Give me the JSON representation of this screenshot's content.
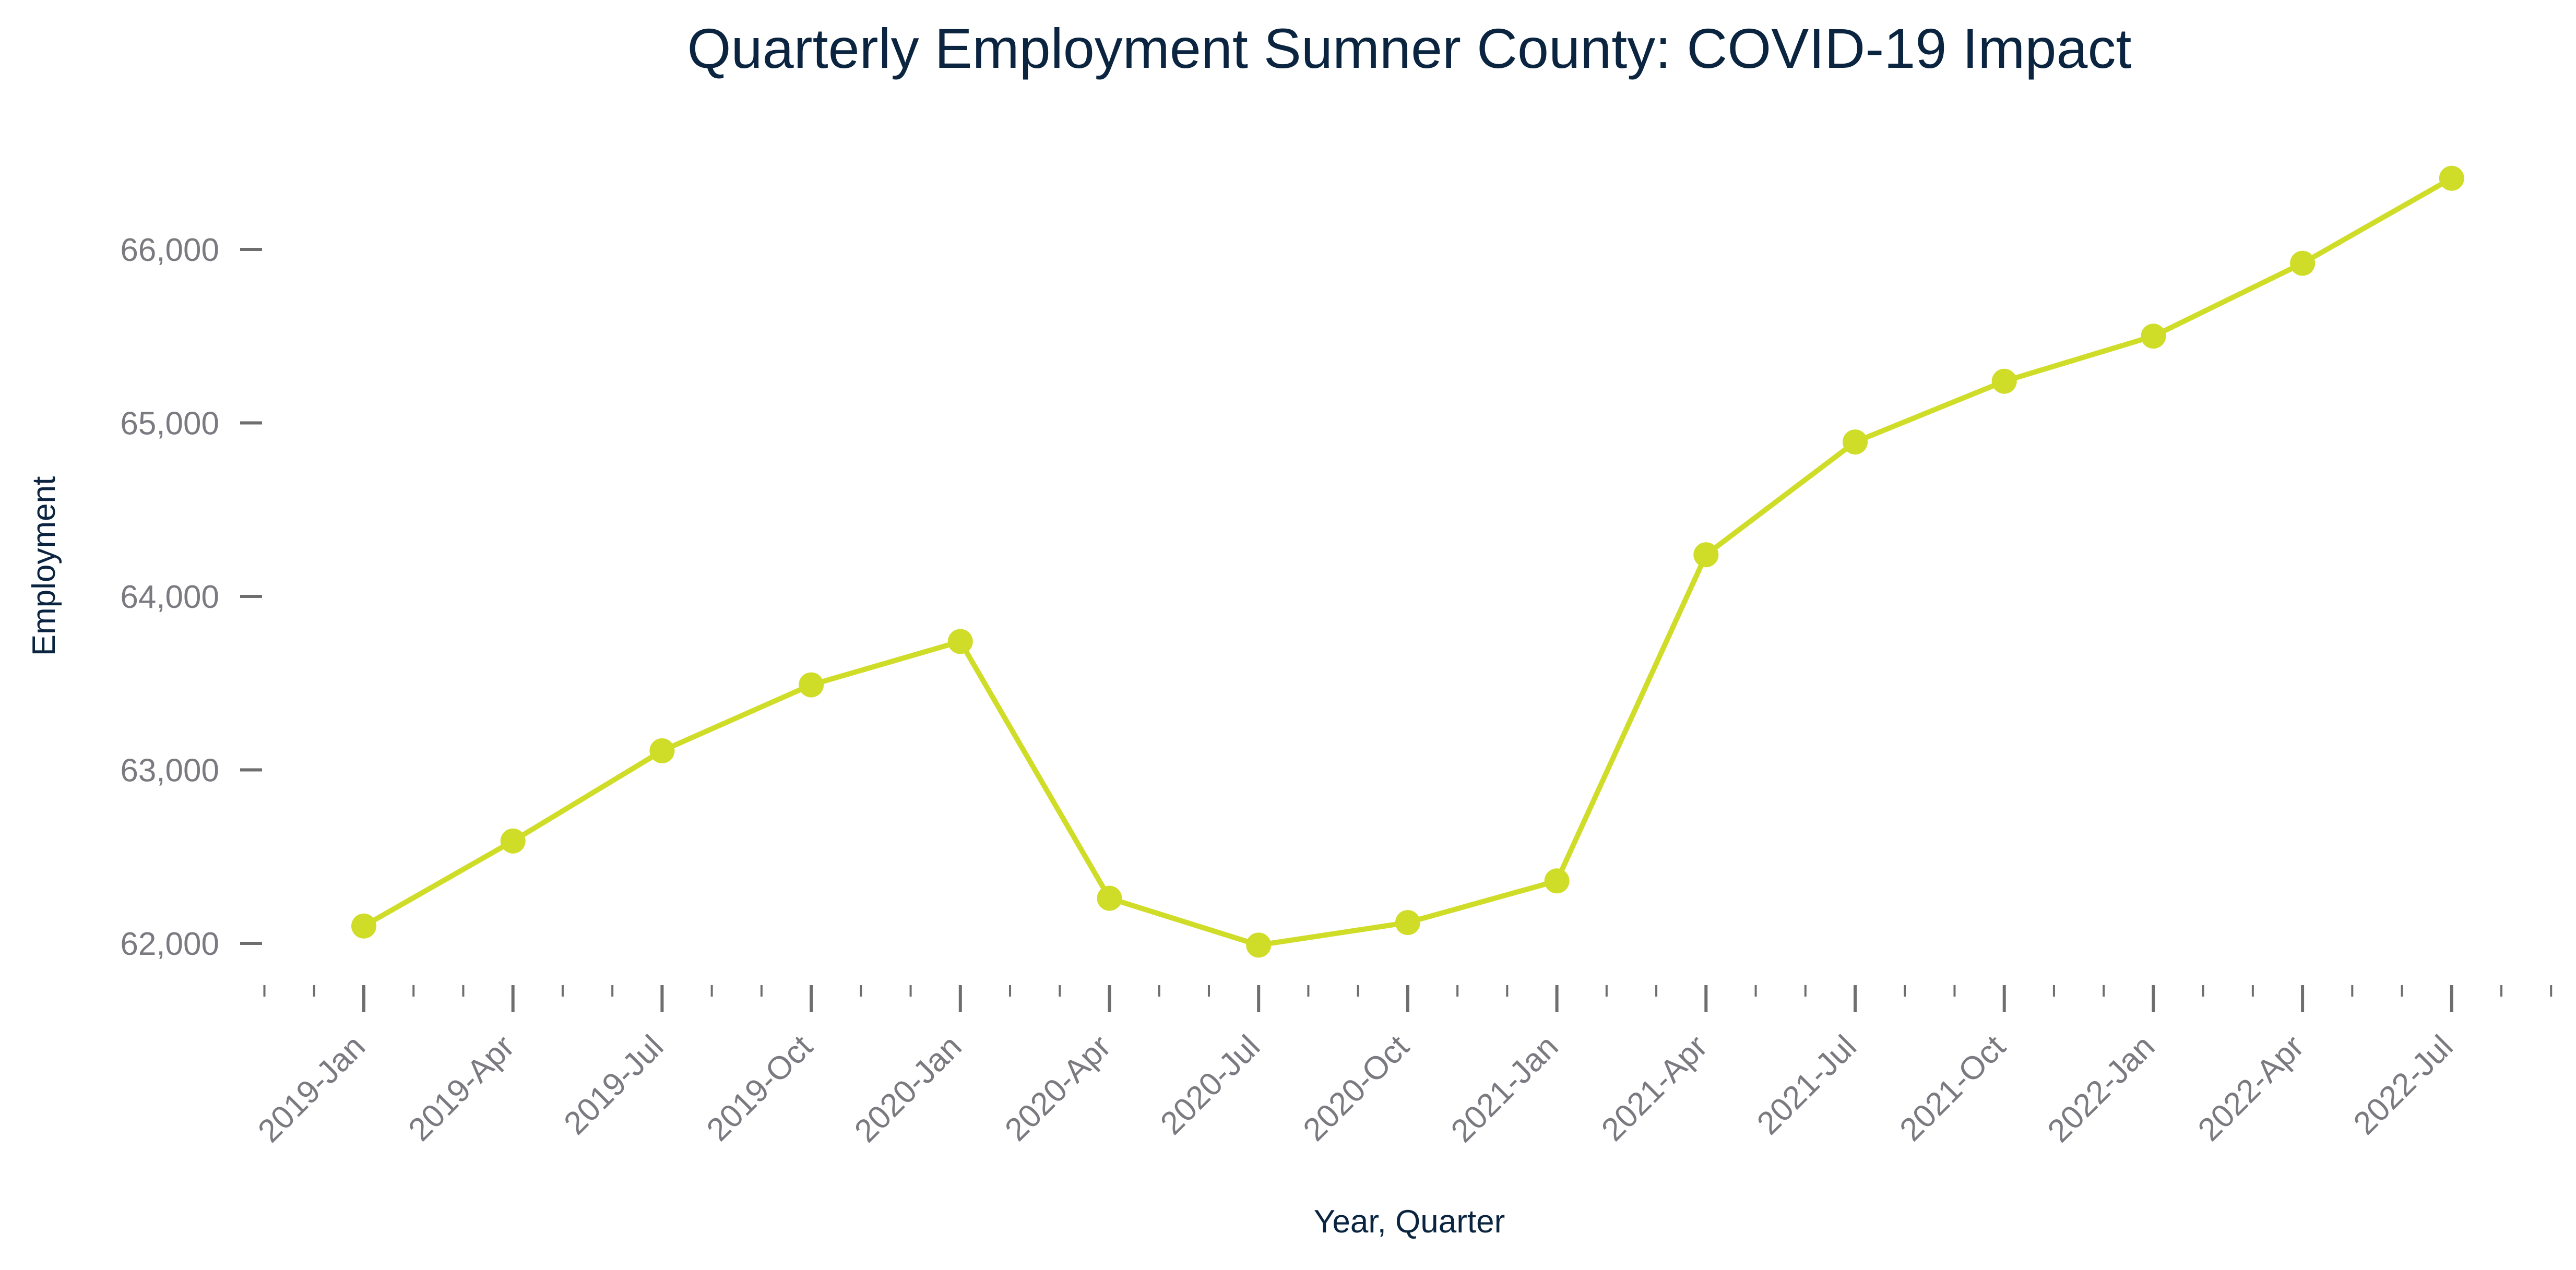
{
  "chart_data": {
    "type": "line",
    "title": "Quarterly Employment Sumner County: COVID-19 Impact",
    "xlabel": "Year, Quarter",
    "ylabel": "Employment",
    "categories": [
      "2019-Jan",
      "2019-Apr",
      "2019-Jul",
      "2019-Oct",
      "2020-Jan",
      "2020-Apr",
      "2020-Jul",
      "2020-Oct",
      "2021-Jan",
      "2021-Apr",
      "2021-Jul",
      "2021-Oct",
      "2022-Jan",
      "2022-Apr",
      "2022-Jul"
    ],
    "series": [
      {
        "values": [
          62100,
          62590,
          63110,
          63490,
          63740,
          62260,
          61990,
          62120,
          62360,
          64240,
          64890,
          65240,
          65500,
          65920,
          66410
        ]
      }
    ],
    "yticks": [
      62000,
      63000,
      64000,
      65000,
      66000
    ],
    "ytick_labels": [
      "62,000",
      "63,000",
      "64,000",
      "65,000",
      "66,000"
    ],
    "ylim": [
      61750,
      66900
    ],
    "grid": false,
    "legend": "none",
    "colors": {
      "series": "#cfdd29",
      "title": "#0b2540",
      "tick_text": "#7a7a80",
      "tick_mark": "#6e6e6e"
    }
  }
}
